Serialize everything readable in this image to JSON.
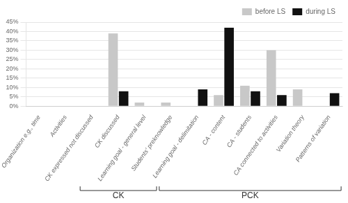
{
  "chart_data": {
    "type": "bar",
    "categories": [
      "Organization e.g., time",
      "Activities",
      "CK expressed not discussed",
      "CK discussed",
      "Learning goal - general level",
      "Students' preknowledge",
      "Learning goal - delimitation",
      "CA - content",
      "CA - students",
      "CA connected to activities",
      "Variation theory",
      "Patterns of variation"
    ],
    "series": [
      {
        "name": "before LS",
        "color": "#c8c8c8",
        "values": [
          0,
          0,
          0,
          39,
          2,
          2,
          0,
          6,
          11,
          30,
          9,
          0
        ]
      },
      {
        "name": "during LS",
        "color": "#111111",
        "values": [
          0,
          0,
          0,
          8,
          0,
          0,
          9,
          42,
          8,
          6,
          0,
          7
        ]
      }
    ],
    "ylim": [
      0,
      45
    ],
    "yticks": [
      {
        "value": 0,
        "label": "0%"
      },
      {
        "value": 5,
        "label": "5%"
      },
      {
        "value": 10,
        "label": "10%"
      },
      {
        "value": 15,
        "label": "15%"
      },
      {
        "value": 20,
        "label": "20%"
      },
      {
        "value": 25,
        "label": "25%"
      },
      {
        "value": 30,
        "label": "30%"
      },
      {
        "value": 35,
        "label": "35%"
      },
      {
        "value": 40,
        "label": "40%"
      },
      {
        "value": 45,
        "label": "45%"
      }
    ],
    "grid": true,
    "legend": "upper right",
    "annotations": [
      {
        "text": "CK",
        "from": "CK expressed not discussed",
        "to": "Learning goal - general level"
      },
      {
        "text": "PCK",
        "from": "Students' preknowledge",
        "to": "Patterns of variation"
      }
    ]
  }
}
